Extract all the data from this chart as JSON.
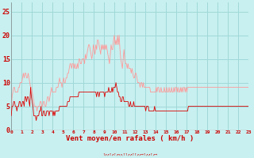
{
  "xlabel": "Vent moyen/en rafales ( km/h )",
  "bg_color": "#c8f0f0",
  "grid_color": "#a0d8d8",
  "line_gust_color": "#ff9999",
  "line_avg_color": "#dd0000",
  "ylim": [
    0,
    27
  ],
  "yticks": [
    0,
    5,
    10,
    15,
    20,
    25
  ],
  "xtick_labels": [
    "0",
    "1",
    "2",
    "3",
    "4",
    "5",
    "6",
    "7",
    "8",
    "9",
    "10",
    "11",
    "12",
    "13",
    "14",
    "15",
    "16",
    "17",
    "18",
    "19",
    "20",
    "21",
    "22",
    "23"
  ],
  "wind_avg": [
    3,
    5,
    5,
    6,
    6,
    5,
    5,
    4,
    5,
    5,
    6,
    6,
    5,
    5,
    6,
    6,
    5,
    7,
    7,
    6,
    7,
    7,
    6,
    5,
    9,
    7,
    6,
    5,
    3,
    3,
    3,
    2,
    3,
    3,
    3,
    4,
    4,
    5,
    3,
    3,
    4,
    4,
    3,
    3,
    4,
    4,
    4,
    3,
    4,
    4,
    4,
    4,
    3,
    4,
    3,
    4,
    4,
    4,
    4,
    4,
    5,
    5,
    5,
    5,
    5,
    5,
    5,
    5,
    5,
    5,
    6,
    6,
    6,
    7,
    7,
    7,
    7,
    7,
    7,
    7,
    7,
    7,
    7,
    7,
    8,
    8,
    8,
    8,
    8,
    8,
    8,
    8,
    8,
    8,
    8,
    8,
    8,
    8,
    8,
    8,
    8,
    8,
    8,
    8,
    8,
    8,
    7,
    8,
    8,
    7,
    8,
    8,
    8,
    8,
    8,
    8,
    7,
    8,
    8,
    8,
    8,
    9,
    8,
    8,
    8,
    9,
    8,
    9,
    9,
    9,
    10,
    9,
    8,
    8,
    7,
    7,
    6,
    6,
    7,
    7,
    6,
    6,
    6,
    6,
    6,
    6,
    5,
    5,
    6,
    5,
    5,
    5,
    6,
    5,
    5,
    5,
    5,
    5,
    5,
    5,
    5,
    5,
    5,
    5,
    5,
    5,
    5,
    4,
    5,
    5,
    5,
    4,
    4,
    4,
    4,
    4,
    4,
    4,
    5,
    4,
    4,
    4,
    4,
    4,
    4,
    4,
    4,
    4,
    4,
    4,
    4,
    4,
    4,
    4,
    4,
    4,
    4,
    4,
    4,
    4,
    4,
    4,
    4,
    4,
    4,
    4,
    4,
    4,
    4,
    4,
    4,
    4,
    4,
    4,
    4,
    4,
    4,
    4,
    4,
    4,
    5,
    5,
    5,
    5,
    5,
    5,
    5,
    5,
    5,
    5,
    5,
    5,
    5,
    5,
    5,
    5,
    5,
    5,
    5,
    5,
    5,
    5,
    5,
    5,
    5,
    5,
    5,
    5,
    5,
    5,
    5,
    5,
    5,
    5,
    5,
    5,
    5,
    5,
    5,
    5,
    5,
    5,
    5,
    5,
    5,
    5,
    5,
    5,
    5,
    5,
    5,
    5,
    5,
    5,
    5,
    5,
    5,
    5,
    5,
    5,
    5,
    5,
    5,
    5,
    5,
    5,
    5,
    5,
    5,
    5,
    5,
    5,
    5,
    5,
    5,
    5
  ],
  "wind_gust": [
    5,
    7,
    8,
    9,
    9,
    8,
    8,
    8,
    8,
    9,
    9,
    10,
    10,
    10,
    11,
    12,
    11,
    12,
    12,
    11,
    11,
    12,
    11,
    10,
    9,
    9,
    8,
    7,
    6,
    5,
    5,
    5,
    4,
    5,
    5,
    5,
    6,
    6,
    5,
    5,
    6,
    6,
    5,
    5,
    6,
    7,
    7,
    6,
    7,
    8,
    9,
    8,
    8,
    8,
    8,
    8,
    9,
    9,
    9,
    10,
    11,
    10,
    10,
    9,
    10,
    11,
    10,
    10,
    11,
    11,
    12,
    12,
    13,
    14,
    14,
    13,
    14,
    14,
    13,
    14,
    13,
    13,
    14,
    13,
    15,
    15,
    14,
    14,
    15,
    15,
    15,
    14,
    16,
    15,
    16,
    17,
    18,
    18,
    17,
    16,
    15,
    16,
    18,
    17,
    16,
    18,
    17,
    19,
    19,
    18,
    17,
    16,
    18,
    17,
    18,
    17,
    18,
    17,
    18,
    17,
    16,
    15,
    14,
    16,
    18,
    17,
    17,
    19,
    20,
    18,
    19,
    18,
    20,
    18,
    20,
    17,
    15,
    14,
    13,
    15,
    17,
    15,
    14,
    14,
    13,
    14,
    13,
    13,
    13,
    12,
    13,
    12,
    11,
    11,
    12,
    12,
    11,
    10,
    10,
    10,
    9,
    10,
    10,
    9,
    10,
    9,
    9,
    9,
    9,
    9,
    9,
    9,
    9,
    8,
    8,
    8,
    8,
    8,
    8,
    8,
    9,
    8,
    9,
    9,
    8,
    8,
    9,
    8,
    8,
    8,
    9,
    8,
    8,
    9,
    8,
    8,
    9,
    8,
    8,
    9,
    8,
    8,
    9,
    8,
    9,
    9,
    8,
    9,
    8,
    8,
    9,
    8,
    9,
    8,
    9,
    9,
    8,
    9,
    8,
    9,
    9,
    9,
    9,
    9,
    9,
    9,
    9,
    9,
    9,
    9,
    9,
    9,
    9,
    9,
    9,
    9,
    9,
    9,
    9,
    9,
    9,
    9,
    9,
    9,
    9,
    9,
    9,
    9,
    9,
    9,
    9,
    9,
    9,
    9,
    9,
    9,
    9,
    9,
    9,
    9,
    9,
    9,
    9,
    9,
    9,
    9,
    9,
    9,
    9,
    9,
    9,
    9,
    9,
    9,
    9,
    9,
    9,
    9,
    9,
    9,
    9,
    9,
    9,
    9,
    9,
    9,
    9,
    9,
    9,
    9,
    9,
    9,
    9,
    9,
    9,
    9
  ]
}
